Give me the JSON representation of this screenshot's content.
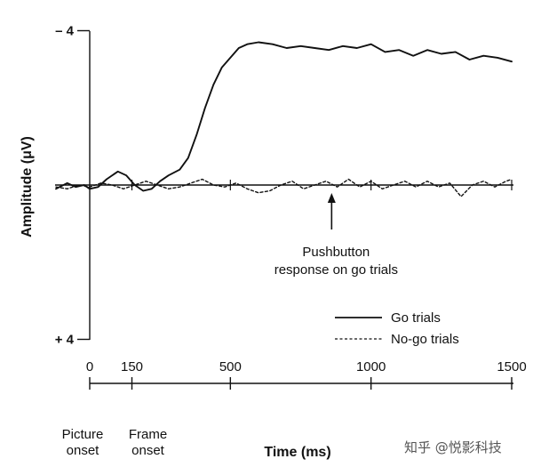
{
  "chart_data": {
    "type": "line",
    "xlabel": "Time (ms)",
    "ylabel": "Amplitude (μV)",
    "xlim": [
      -120,
      1500
    ],
    "ylim": [
      4,
      -4
    ],
    "y_ticks": [
      {
        "value": -4,
        "label": "– 4"
      },
      {
        "value": 4,
        "label": "+ 4"
      }
    ],
    "x_ticks": [
      {
        "value": 0,
        "label": "0"
      },
      {
        "value": 150,
        "label": "150"
      },
      {
        "value": 500,
        "label": "500"
      },
      {
        "value": 1000,
        "label": "1000"
      },
      {
        "value": 1500,
        "label": "1500"
      }
    ],
    "event_labels": [
      {
        "x": 0,
        "lines": [
          "Picture",
          "onset"
        ]
      },
      {
        "x": 150,
        "lines": [
          "Frame",
          "onset"
        ]
      }
    ],
    "annotation": {
      "x": 860,
      "lines": [
        "Pushbutton",
        "response on go trials"
      ]
    },
    "legend_position": "bottom-right",
    "series": [
      {
        "name": "Go trials",
        "style": "solid",
        "color": "#111111",
        "points": [
          [
            -120,
            0.1
          ],
          [
            -80,
            -0.05
          ],
          [
            -50,
            0.05
          ],
          [
            -20,
            0.0
          ],
          [
            0,
            0.1
          ],
          [
            30,
            0.05
          ],
          [
            60,
            -0.15
          ],
          [
            100,
            -0.35
          ],
          [
            130,
            -0.25
          ],
          [
            160,
            0.0
          ],
          [
            190,
            0.15
          ],
          [
            220,
            0.1
          ],
          [
            250,
            -0.1
          ],
          [
            280,
            -0.25
          ],
          [
            320,
            -0.4
          ],
          [
            350,
            -0.7
          ],
          [
            380,
            -1.3
          ],
          [
            410,
            -2.0
          ],
          [
            440,
            -2.6
          ],
          [
            470,
            -3.05
          ],
          [
            500,
            -3.3
          ],
          [
            530,
            -3.55
          ],
          [
            560,
            -3.65
          ],
          [
            600,
            -3.7
          ],
          [
            650,
            -3.65
          ],
          [
            700,
            -3.55
          ],
          [
            750,
            -3.6
          ],
          [
            800,
            -3.55
          ],
          [
            850,
            -3.5
          ],
          [
            900,
            -3.6
          ],
          [
            950,
            -3.55
          ],
          [
            1000,
            -3.65
          ],
          [
            1050,
            -3.45
          ],
          [
            1100,
            -3.5
          ],
          [
            1150,
            -3.35
          ],
          [
            1200,
            -3.5
          ],
          [
            1250,
            -3.4
          ],
          [
            1300,
            -3.45
          ],
          [
            1350,
            -3.25
          ],
          [
            1400,
            -3.35
          ],
          [
            1450,
            -3.3
          ],
          [
            1500,
            -3.2
          ]
        ]
      },
      {
        "name": "No-go trials",
        "style": "dashed",
        "color": "#111111",
        "points": [
          [
            -120,
            0.05
          ],
          [
            -80,
            0.1
          ],
          [
            -40,
            0.0
          ],
          [
            0,
            0.05
          ],
          [
            40,
            -0.05
          ],
          [
            80,
            0.0
          ],
          [
            120,
            0.1
          ],
          [
            160,
            0.0
          ],
          [
            200,
            -0.1
          ],
          [
            240,
            0.0
          ],
          [
            280,
            0.1
          ],
          [
            320,
            0.05
          ],
          [
            360,
            -0.05
          ],
          [
            400,
            -0.15
          ],
          [
            440,
            0.0
          ],
          [
            480,
            0.05
          ],
          [
            520,
            -0.05
          ],
          [
            560,
            0.1
          ],
          [
            600,
            0.2
          ],
          [
            640,
            0.15
          ],
          [
            680,
            0.0
          ],
          [
            720,
            -0.1
          ],
          [
            760,
            0.1
          ],
          [
            800,
            0.0
          ],
          [
            840,
            -0.1
          ],
          [
            880,
            0.05
          ],
          [
            920,
            -0.15
          ],
          [
            960,
            0.05
          ],
          [
            1000,
            -0.1
          ],
          [
            1040,
            0.1
          ],
          [
            1080,
            0.0
          ],
          [
            1120,
            -0.1
          ],
          [
            1160,
            0.05
          ],
          [
            1200,
            -0.1
          ],
          [
            1240,
            0.05
          ],
          [
            1280,
            -0.05
          ],
          [
            1320,
            0.3
          ],
          [
            1360,
            0.0
          ],
          [
            1400,
            -0.1
          ],
          [
            1440,
            0.05
          ],
          [
            1480,
            -0.1
          ],
          [
            1500,
            -0.15
          ]
        ]
      }
    ]
  },
  "watermark": "知乎 @悦影科技"
}
